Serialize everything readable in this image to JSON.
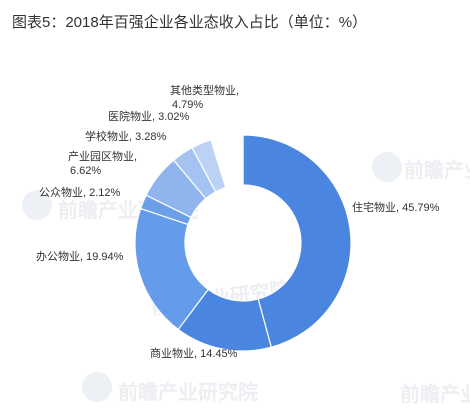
{
  "title": "图表5：2018年百强企业各业态收入占比（单位：%）",
  "watermark": "前瞻产业研究院",
  "chart_data": {
    "type": "pie",
    "donut": true,
    "title": "图表5：2018年百强企业各业态收入占比（单位：%）",
    "categories": [
      "住宅物业",
      "商业物业",
      "办公物业",
      "公众物业",
      "产业园区物业",
      "学校物业",
      "医院物业",
      "其他类型物业"
    ],
    "values": [
      45.79,
      14.45,
      19.94,
      2.12,
      6.62,
      3.28,
      3.02,
      4.79
    ],
    "labels": [
      "住宅物业, 45.79%",
      "商业物业, 14.45%",
      "办公物业, 19.94%",
      "公众物业, 2.12%",
      "产业园区物业, 6.62%",
      "学校物业, 3.28%",
      "医院物业, 3.02%",
      "其他类型物业, 4.79%"
    ],
    "colors": [
      "#4a86e0",
      "#4a86e0",
      "#649beb",
      "#6c9fe8",
      "#8fb4ee",
      "#a5c3f1",
      "#bbd2f5",
      "#ffffff"
    ],
    "legend": "none"
  }
}
